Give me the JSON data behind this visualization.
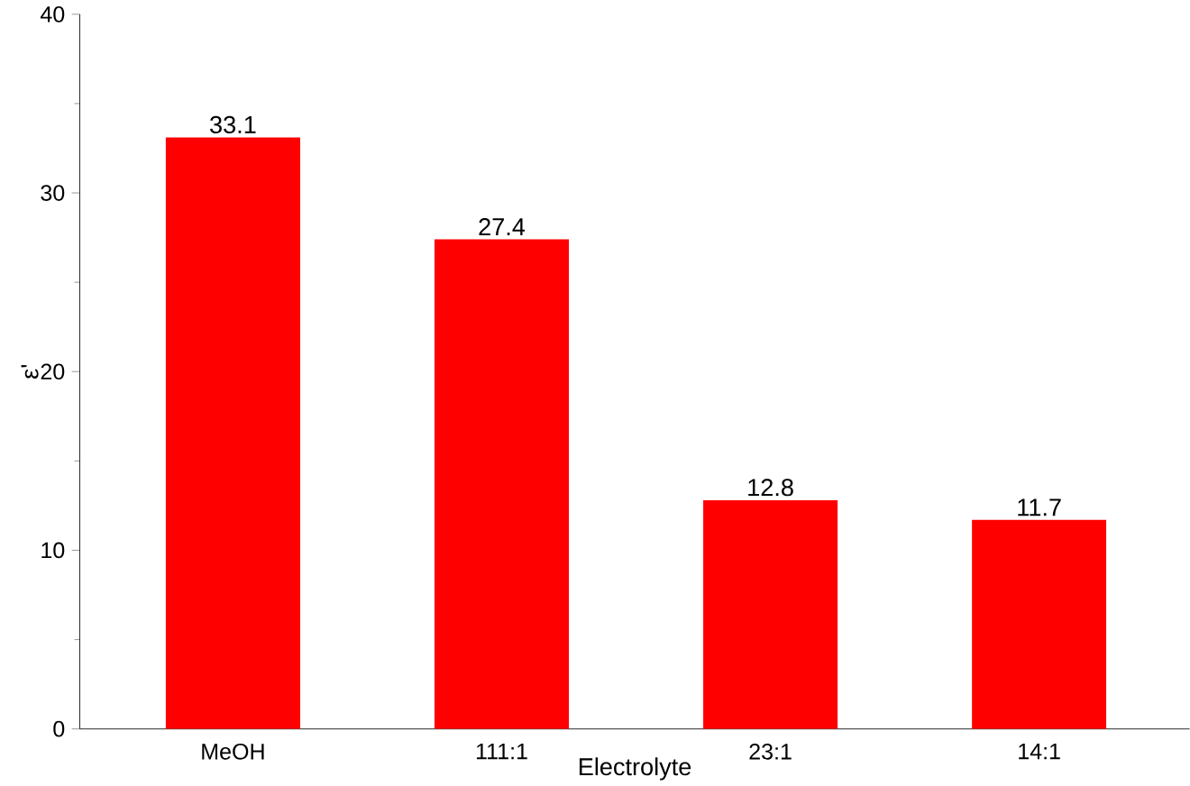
{
  "chart_data": {
    "type": "bar",
    "xlabel": "Electrolyte",
    "ylabel": "ε'",
    "categories": [
      "MeOH",
      "111:1",
      "23:1",
      "14:1"
    ],
    "values": [
      33.1,
      27.4,
      12.8,
      11.7
    ],
    "color": "#ff0000",
    "ylim": [
      0,
      40
    ],
    "yticks": [
      0,
      10,
      20,
      30,
      40
    ],
    "data_labels": true,
    "grid": false
  }
}
